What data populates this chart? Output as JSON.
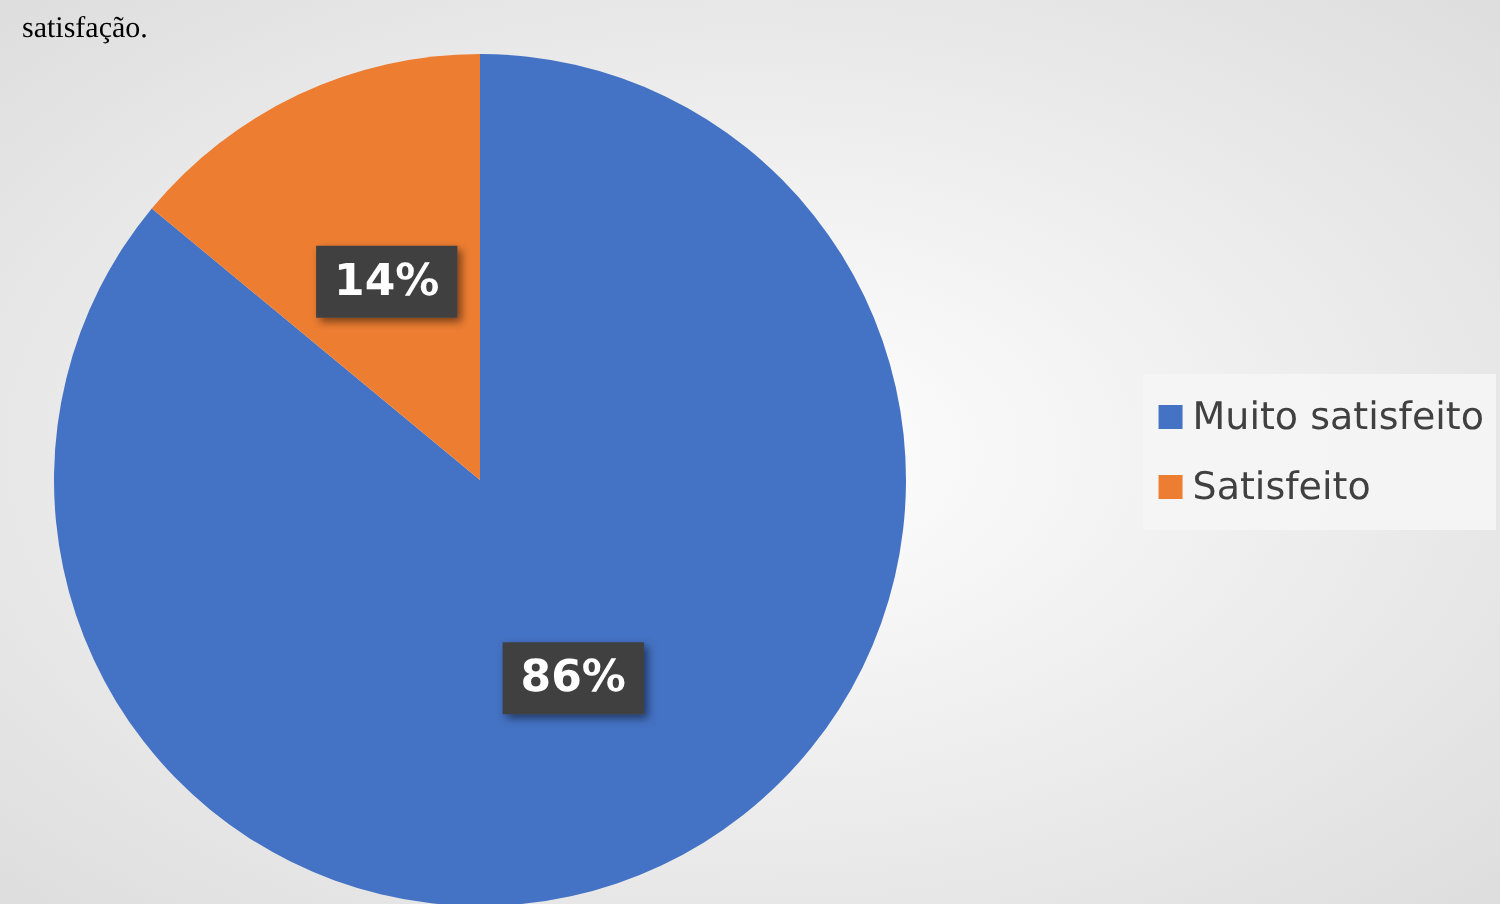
{
  "chart_data": {
    "type": "pie",
    "annotations": [
      "satisfação."
    ],
    "categories": [
      "Muito satisfeito",
      "Satisfeito"
    ],
    "values": [
      86,
      14
    ],
    "colors": [
      "#4472c4",
      "#ed7d31"
    ],
    "value_labels": [
      "86%",
      "14%"
    ],
    "legend": "right"
  }
}
